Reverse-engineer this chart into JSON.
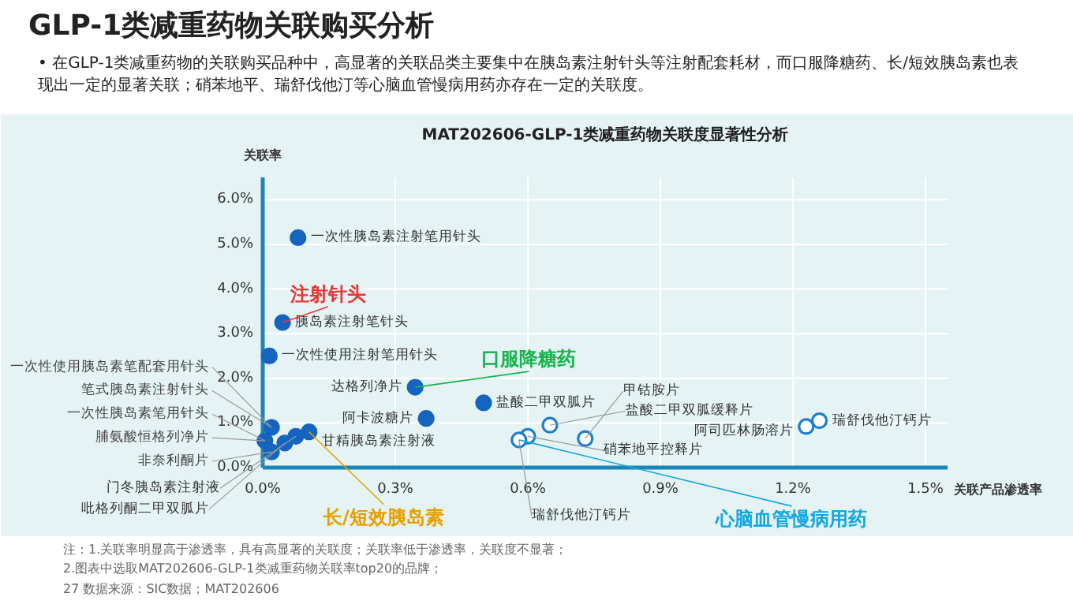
{
  "chart_data": {
    "type": "scatter",
    "title": "GLP-1类减重药物关联购买分析",
    "subtitle": "• 在GLP-1类减重药物的关联购买品种中，高显著的关联品类主要集中在胰岛素注射针头等注射配套耗材，而口服降糖药、长/短效胰岛素也表现出一定的显著关联；硝苯地平、瑞舒伐他汀等心脑血管慢病用药亦存在一定的关联度。",
    "xlabel": "关联产品渗透率",
    "ylabel": "关联率",
    "series": [
      {
        "color": "#1565c0",
        "x": [
          0.08,
          0.045,
          0.015,
          0.02,
          0.005,
          0.02,
          0.105,
          0.075,
          0.05,
          0.345,
          0.5,
          0.37
        ],
        "values": [
          5.15,
          3.25,
          2.5,
          0.9,
          0.6,
          0.35,
          0.8,
          0.7,
          0.55,
          1.8,
          1.45,
          1.1
        ]
      },
      {
        "color": "#1e7fd0",
        "x": [
          0.65,
          0.73,
          0.6,
          0.58,
          1.26,
          1.23
        ],
        "values": [
          0.95,
          0.65,
          0.7,
          0.62,
          1.05,
          0.92
        ]
      }
    ],
    "marker": "circle",
    "xlim": [
      0,
      1.55
    ],
    "ylim": [
      0,
      6.5
    ],
    "xticks": [
      {
        "value": 0,
        "label": "0.0%"
      },
      {
        "value": 0.3,
        "label": "0.3%"
      },
      {
        "value": 0.6,
        "label": "0.6%"
      },
      {
        "value": 0.9,
        "label": "0.9%"
      },
      {
        "value": 1.2,
        "label": "1.2%"
      },
      {
        "value": 1.5,
        "label": "1.5%"
      }
    ],
    "yticks": [
      {
        "value": 0,
        "label": "0.0%"
      },
      {
        "value": 1,
        "label": "1.0%"
      },
      {
        "value": 2,
        "label": "2.0%"
      },
      {
        "value": 3,
        "label": "3.0%"
      },
      {
        "value": 4,
        "label": "4.0%"
      },
      {
        "value": 5,
        "label": "5.0%"
      },
      {
        "value": 6,
        "label": "6.0%"
      }
    ],
    "grid": true,
    "annotations": [
      {
        "text": "MAT202606-GLP-1类减重药物关联度显著性分析"
      },
      {
        "text": "一次性胰岛素注射笔用针头",
        "x": 0.08,
        "y": 5.15
      },
      {
        "text": "胰岛素注射笔针头",
        "x": 0.045,
        "y": 3.25
      },
      {
        "text": "一次性使用注射笔用针头",
        "x": 0.015,
        "y": 2.5
      },
      {
        "text": "一次性使用胰岛素笔配套用针头",
        "x": 0.02,
        "y": 0.9
      },
      {
        "text": "笔式胰岛素注射针头",
        "x": 0.02,
        "y": 0.9
      },
      {
        "text": "一次性胰岛素笔用针头",
        "x": 0.005,
        "y": 0.6
      },
      {
        "text": "脯氨酸恒格列净片",
        "x": 0.005,
        "y": 0.6
      },
      {
        "text": "非奈利酮片",
        "x": 0.02,
        "y": 0.35
      },
      {
        "text": "甘精胰岛素注射液",
        "x": 0.105,
        "y": 0.8
      },
      {
        "text": "门冬胰岛素注射液",
        "x": 0.075,
        "y": 0.7
      },
      {
        "text": "吡格列酮二甲双胍片",
        "x": 0.05,
        "y": 0.55
      },
      {
        "text": "达格列净片",
        "x": 0.345,
        "y": 1.8
      },
      {
        "text": "盐酸二甲双胍片",
        "x": 0.5,
        "y": 1.45
      },
      {
        "text": "阿卡波糖片",
        "x": 0.37,
        "y": 1.1
      },
      {
        "text": "盐酸二甲双胍缓释片",
        "x": 0.65,
        "y": 0.95
      },
      {
        "text": "甲钴胺片",
        "x": 0.73,
        "y": 0.65
      },
      {
        "text": "硝苯地平控释片",
        "x": 0.6,
        "y": 0.7
      },
      {
        "text": "瑞舒伐他汀钙片",
        "x": 0.58,
        "y": 0.62
      },
      {
        "text": "瑞舒伐他汀钙片",
        "x": 1.26,
        "y": 1.05
      },
      {
        "text": "阿司匹林肠溶片",
        "x": 1.23,
        "y": 0.92
      },
      {
        "text": "注射针头",
        "x": 0.045,
        "y": 3.25
      },
      {
        "text": "长/短效胰岛素",
        "x": 0.105,
        "y": 0.8
      },
      {
        "text": "口服降糖药",
        "x": 0.345,
        "y": 1.8
      },
      {
        "text": "心脑血管慢病用药",
        "x": 0.58,
        "y": 0.62
      },
      "注：1.关联率明显高于渗透率，具有高显著的关联度；关联率低于渗透率，关联度不显著；",
      "2.图表中选取MAT202606-GLP-1类减重药物关联率top20的品牌；",
      "27 数据来源：SIC数据；MAT202606"
    ]
  }
}
